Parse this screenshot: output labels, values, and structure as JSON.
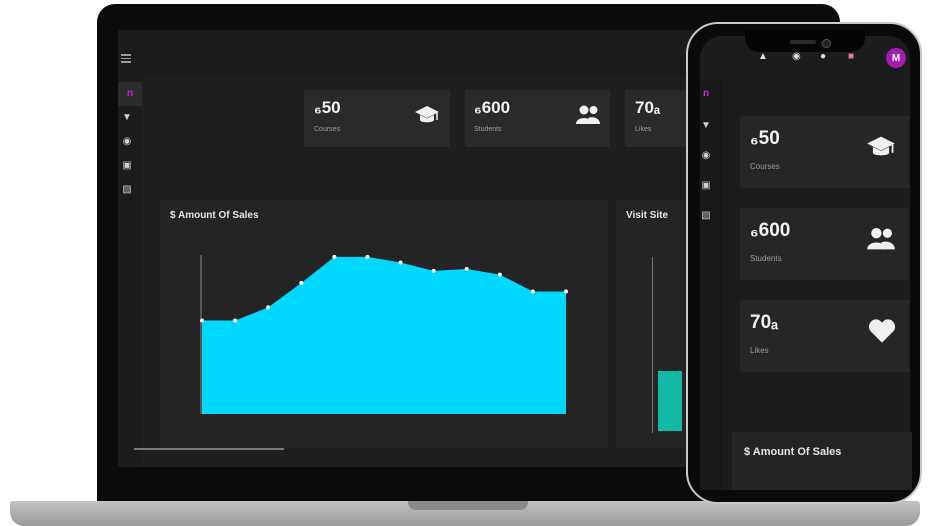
{
  "laptop": {
    "stats": [
      {
        "value": "₆50",
        "label": "Courses",
        "icon": "graduation-cap-icon"
      },
      {
        "value": "₆600",
        "label": "Students",
        "icon": "users-icon"
      },
      {
        "value": "70ₐ",
        "label": "Likes",
        "icon": "heart-icon"
      }
    ],
    "sales_title": "$  Amount Of Sales",
    "visits_title": "Visit Site"
  },
  "phone": {
    "avatar_letter": "M",
    "stats": [
      {
        "value": "₆50",
        "label": "Courses",
        "icon": "graduation-cap-icon"
      },
      {
        "value": "₆600",
        "label": "Students",
        "icon": "users-icon"
      },
      {
        "value": "70ₐ",
        "label": "Likes",
        "icon": "heart-icon"
      }
    ],
    "sales_title": "$  Amount Of Sales"
  },
  "colors": {
    "accent": "#00d8ff",
    "brand": "#c026d3",
    "bar": "#14b8a6"
  },
  "chart_data": {
    "type": "area",
    "title": "Amount Of Sales",
    "x": [
      0,
      1,
      2,
      3,
      4,
      5,
      6,
      7,
      8,
      9,
      10,
      11
    ],
    "values": [
      100,
      100,
      114,
      140,
      168,
      168,
      162,
      153,
      155,
      149,
      131,
      131
    ],
    "ylim": [
      0,
      170
    ],
    "grid": false
  }
}
